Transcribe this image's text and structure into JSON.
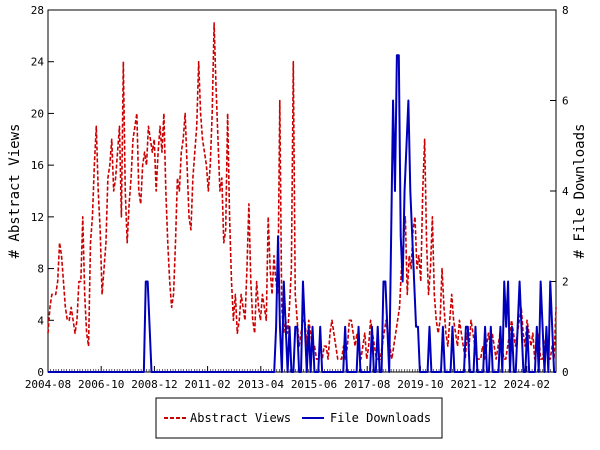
{
  "chart_data": {
    "type": "line",
    "ylabel_left": "# Abstract Views",
    "ylabel_right": "# File Downloads",
    "x_tick_labels": [
      "2004-08",
      "2006-10",
      "2008-12",
      "2011-02",
      "2013-04",
      "2015-06",
      "2017-08",
      "2019-10",
      "2021-12",
      "2024-02"
    ],
    "ylim_left": [
      0,
      28
    ],
    "ylim_right": [
      0,
      8
    ],
    "y_ticks_left": [
      0,
      4,
      8,
      12,
      16,
      20,
      24,
      28
    ],
    "y_ticks_right": [
      0,
      2,
      4,
      6,
      8
    ],
    "grid": false,
    "legend_position": "bottom-center",
    "series": [
      {
        "name": "Abstract Views",
        "axis": "left",
        "color": "#cc0000",
        "style": "dashed",
        "values": [
          3,
          5,
          6,
          6,
          6,
          7,
          10,
          9,
          7,
          5,
          4,
          4,
          5,
          4,
          3,
          4,
          7,
          7,
          12,
          6,
          3,
          2,
          10,
          12,
          16,
          19,
          14,
          11,
          6,
          8,
          10,
          15,
          16,
          18,
          14,
          15,
          17,
          19,
          12,
          24,
          14,
          10,
          13,
          15,
          18,
          19,
          20,
          14,
          13,
          16,
          17,
          16,
          19,
          18,
          17,
          18,
          14,
          17,
          19,
          17,
          20,
          14,
          10,
          7,
          5,
          6,
          10,
          15,
          14,
          17,
          18,
          20,
          16,
          12,
          11,
          15,
          17,
          19,
          24,
          20,
          18,
          17,
          16,
          14,
          16,
          20,
          27,
          22,
          18,
          14,
          15,
          10,
          11,
          20,
          12,
          7,
          4,
          6,
          3,
          4,
          6,
          5,
          4,
          8,
          13,
          7,
          4,
          3,
          7,
          5,
          4,
          6,
          5,
          4,
          12,
          8,
          6,
          9,
          7,
          6,
          21,
          5,
          3,
          4,
          3,
          5,
          8,
          24,
          6,
          4,
          2,
          3,
          4,
          4,
          2,
          4,
          3,
          2,
          2,
          1,
          1,
          2,
          1,
          2,
          2,
          1,
          3,
          4,
          3,
          2,
          1,
          1,
          1,
          2,
          1,
          2,
          4,
          4,
          3,
          2,
          3,
          2,
          1,
          2,
          3,
          1,
          2,
          4,
          3,
          2,
          1,
          1,
          1,
          2,
          3,
          4,
          3,
          2,
          1,
          2,
          3,
          4,
          5,
          8,
          10,
          12,
          6,
          9,
          8,
          11,
          12,
          8,
          9,
          7,
          14,
          18,
          10,
          6,
          8,
          12,
          6,
          4,
          3,
          4,
          8,
          5,
          3,
          2,
          4,
          6,
          4,
          3,
          2,
          4,
          3,
          2,
          1,
          3,
          2,
          4,
          3,
          2,
          1,
          1,
          1,
          2,
          1,
          2,
          3,
          2,
          3,
          2,
          1,
          2,
          3,
          2,
          1,
          1,
          2,
          3,
          4,
          3,
          2,
          3,
          4,
          5,
          3,
          2,
          4,
          3,
          2,
          3,
          1,
          2,
          3,
          1,
          1,
          2,
          3,
          1,
          1,
          2,
          1,
          5
        ]
      },
      {
        "name": "File Downloads",
        "axis": "right",
        "color": "#0000bb",
        "style": "solid",
        "values": [
          0,
          0,
          0,
          0,
          0,
          0,
          0,
          0,
          0,
          0,
          0,
          0,
          0,
          0,
          0,
          0,
          0,
          0,
          0,
          0,
          0,
          0,
          0,
          0,
          0,
          0,
          0,
          0,
          0,
          0,
          0,
          0,
          0,
          0,
          0,
          0,
          0,
          0,
          0,
          0,
          0,
          0,
          0,
          0,
          0,
          0,
          0,
          0,
          0,
          0,
          0,
          2,
          2,
          1,
          0,
          0,
          0,
          0,
          0,
          0,
          0,
          0,
          0,
          0,
          0,
          0,
          0,
          0,
          0,
          0,
          0,
          0,
          0,
          0,
          0,
          0,
          0,
          0,
          0,
          0,
          0,
          0,
          0,
          0,
          0,
          0,
          0,
          0,
          0,
          0,
          0,
          0,
          0,
          0,
          0,
          0,
          0,
          0,
          0,
          0,
          0,
          0,
          0,
          0,
          0,
          0,
          0,
          0,
          0,
          0,
          0,
          0,
          0,
          0,
          0,
          0,
          0,
          0,
          0,
          1,
          3,
          1,
          0,
          2,
          1,
          0,
          1,
          0,
          0,
          1,
          1,
          0,
          0,
          2,
          1,
          0,
          1,
          0,
          1,
          0,
          0,
          0,
          1,
          0,
          0,
          0,
          0,
          0,
          0,
          0,
          0,
          0,
          0,
          0,
          0,
          1,
          0,
          0,
          0,
          0,
          0,
          0,
          1,
          0,
          0,
          0,
          0,
          0,
          0,
          1,
          0,
          0,
          1,
          0,
          0,
          2,
          2,
          1,
          0,
          3,
          6,
          4,
          7,
          7,
          3,
          2,
          4,
          5,
          6,
          4,
          3,
          2,
          1,
          1,
          0,
          0,
          0,
          0,
          0,
          1,
          0,
          0,
          0,
          0,
          0,
          0,
          1,
          0,
          0,
          0,
          0,
          1,
          0,
          0,
          0,
          0,
          0,
          0,
          1,
          1,
          0,
          0,
          0,
          1,
          0,
          0,
          0,
          0,
          1,
          0,
          0,
          1,
          0,
          0,
          0,
          0,
          1,
          0,
          2,
          1,
          2,
          0,
          1,
          0,
          0,
          1,
          2,
          1,
          0,
          0,
          1,
          0,
          0,
          0,
          0,
          1,
          0,
          2,
          1,
          0,
          1,
          0,
          2,
          1,
          0,
          0
        ]
      }
    ]
  }
}
